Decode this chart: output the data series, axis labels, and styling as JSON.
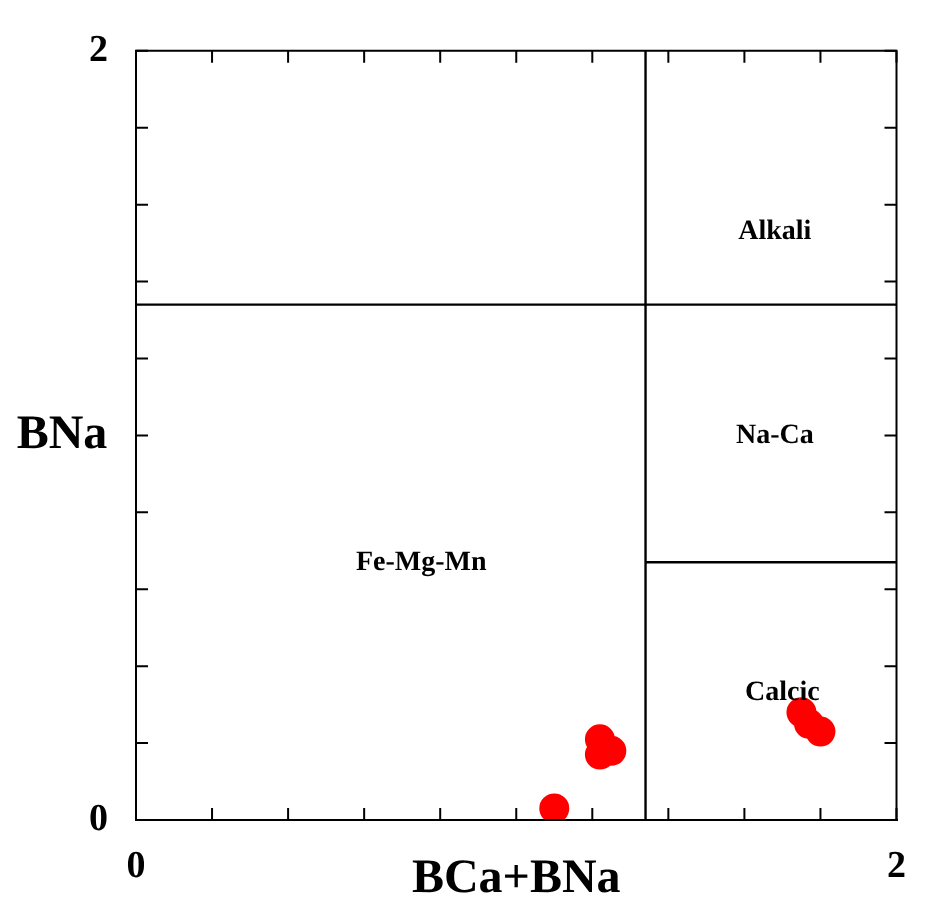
{
  "chart_data": {
    "type": "scatter",
    "xlabel": "BCa+BNa",
    "ylabel": "BNa",
    "xlim": [
      0,
      2
    ],
    "ylim": [
      0,
      2
    ],
    "xticks": [
      0,
      {
        "value": 0.2,
        "label": null
      },
      {
        "value": 0.4,
        "label": null
      },
      {
        "value": 0.6,
        "label": null
      },
      {
        "value": 0.8,
        "label": null
      },
      {
        "value": 1,
        "label": null
      },
      {
        "value": 1.2,
        "label": null
      },
      {
        "value": 1.4,
        "label": null
      },
      {
        "value": 1.6,
        "label": null
      },
      {
        "value": 1.8,
        "label": null
      },
      2
    ],
    "yticks": [
      0,
      {
        "value": 0.2,
        "label": null
      },
      {
        "value": 0.4,
        "label": null
      },
      {
        "value": 0.6,
        "label": null
      },
      {
        "value": 0.8,
        "label": null
      },
      {
        "value": 1,
        "label": null
      },
      {
        "value": 1.2,
        "label": null
      },
      {
        "value": 1.4,
        "label": null
      },
      {
        "value": 1.6,
        "label": null
      },
      {
        "value": 1.8,
        "label": null
      },
      2
    ],
    "grid": false,
    "legend": false,
    "marker": "circle",
    "series": [
      {
        "type": "scatter",
        "color": "#ff0000",
        "x": [
          1.1,
          1.22,
          1.25,
          1.22,
          1.75,
          1.77,
          1.8
        ],
        "values": [
          0.03,
          0.21,
          0.18,
          0.17,
          0.28,
          0.25,
          0.23
        ]
      },
      {
        "type": "line",
        "color": "#000000",
        "marker": "none",
        "x": [
          0,
          2
        ],
        "values": [
          1.34,
          1.34
        ]
      },
      {
        "type": "line",
        "color": "#000000",
        "marker": "none",
        "x": [
          1.34,
          1.34
        ],
        "values": [
          0,
          2
        ]
      },
      {
        "type": "line",
        "color": "#000000",
        "marker": "none",
        "x": [
          1.34,
          2
        ],
        "values": [
          0.67,
          0.67
        ]
      }
    ],
    "annotations": [
      "Alkali",
      "Na-Ca",
      "Fe-Mg-Mn",
      "Calcic"
    ]
  }
}
